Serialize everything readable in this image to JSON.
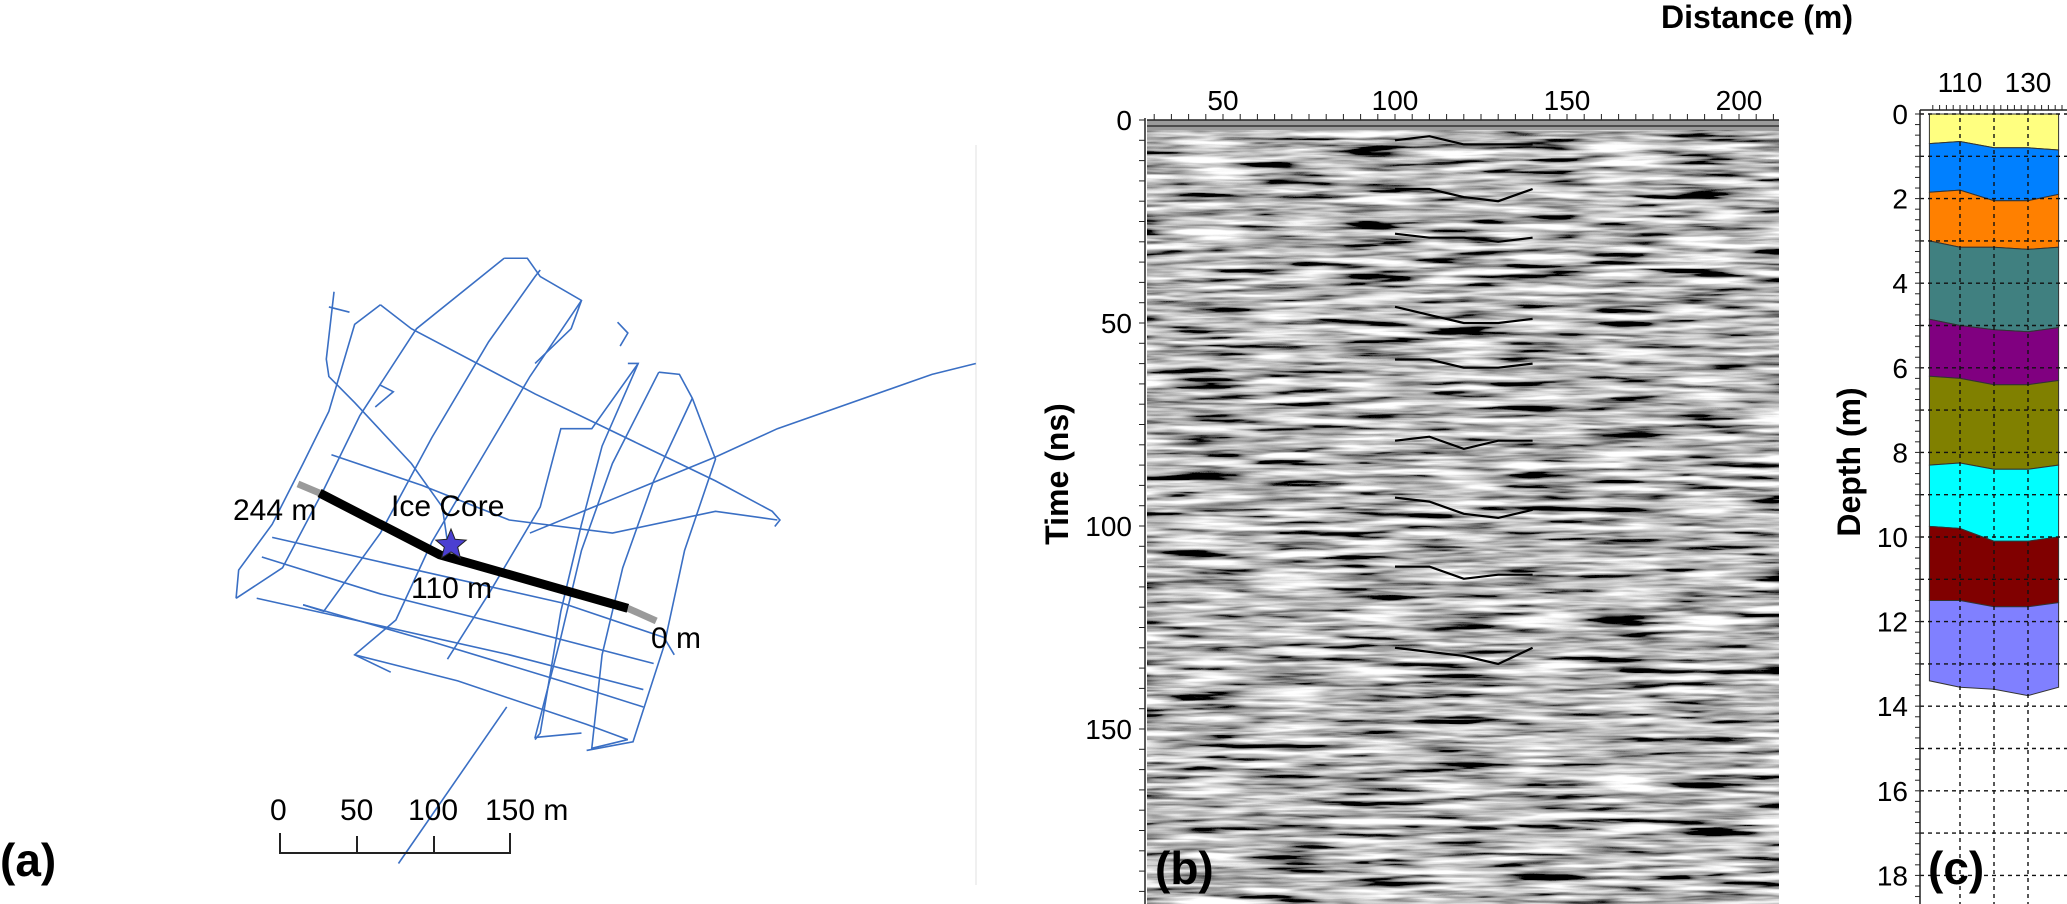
{
  "panels": {
    "a": {
      "label": "(a)"
    },
    "b": {
      "label": "(b)"
    },
    "c": {
      "label": "(c)"
    }
  },
  "chart_data": [
    {
      "type": "line",
      "title": "(a)",
      "description_labels": {
        "start": "244 m",
        "core": "Ice Core",
        "core_distance": "110 m",
        "end": "0 m"
      },
      "scale_bar": {
        "ticks": [
          "0",
          "50",
          "100",
          "150 m"
        ]
      },
      "colors": {
        "tracks": "#3a6fc4",
        "profile": "#000000",
        "profile_ends": "#9a9a9a",
        "star": "#4b3fd1"
      }
    },
    {
      "type": "heatmap",
      "title": "(b)",
      "xlabel": "Distance (m)",
      "ylabel": "Time (ns)",
      "xticks": [
        50,
        100,
        150,
        200
      ],
      "yticks": [
        0,
        50,
        100,
        150
      ],
      "xlim": [
        28,
        210
      ],
      "ylim": [
        193,
        0
      ],
      "horizons": {
        "x": [
          100,
          110,
          120,
          130,
          140
        ],
        "t": [
          [
            5,
            4,
            6,
            6,
            6
          ],
          [
            17,
            17,
            19,
            20,
            17
          ],
          [
            28,
            29,
            29,
            30,
            29
          ],
          [
            46,
            48,
            50,
            50,
            49
          ],
          [
            59,
            59,
            61,
            61,
            60
          ],
          [
            79,
            78,
            81,
            79,
            79
          ],
          [
            93,
            94,
            97,
            98,
            96
          ],
          [
            110,
            110,
            113,
            112,
            112
          ],
          [
            130,
            131,
            132,
            134,
            130
          ]
        ]
      }
    },
    {
      "type": "area",
      "title": "(c)",
      "ylabel": "Depth (m)",
      "xticks": [
        110,
        130
      ],
      "yticks": [
        0,
        2,
        4,
        6,
        8,
        10,
        12,
        14,
        16,
        18
      ],
      "xlim": [
        101,
        139
      ],
      "ylim": [
        18.7,
        0
      ],
      "x": [
        101,
        110,
        120,
        130,
        139
      ],
      "boundaries": [
        [
          0,
          0,
          0,
          0,
          0
        ],
        [
          0.7,
          0.65,
          0.8,
          0.8,
          0.85
        ],
        [
          1.85,
          1.8,
          2.05,
          2.05,
          1.9
        ],
        [
          3.0,
          3.15,
          3.15,
          3.2,
          3.15
        ],
        [
          4.85,
          5.0,
          5.1,
          5.15,
          5.05
        ],
        [
          6.2,
          6.25,
          6.4,
          6.4,
          6.3
        ],
        [
          8.3,
          8.25,
          8.4,
          8.4,
          8.3
        ],
        [
          9.75,
          9.8,
          10.1,
          10.1,
          10.0
        ],
        [
          11.5,
          11.5,
          11.65,
          11.65,
          11.55
        ],
        [
          13.4,
          13.55,
          13.6,
          13.75,
          13.55
        ]
      ],
      "layer_colors": [
        "#ffff80",
        "#0080ff",
        "#ff8000",
        "#408080",
        "#800080",
        "#808000",
        "#00ffff",
        "#800000",
        "#8080ff"
      ]
    }
  ]
}
